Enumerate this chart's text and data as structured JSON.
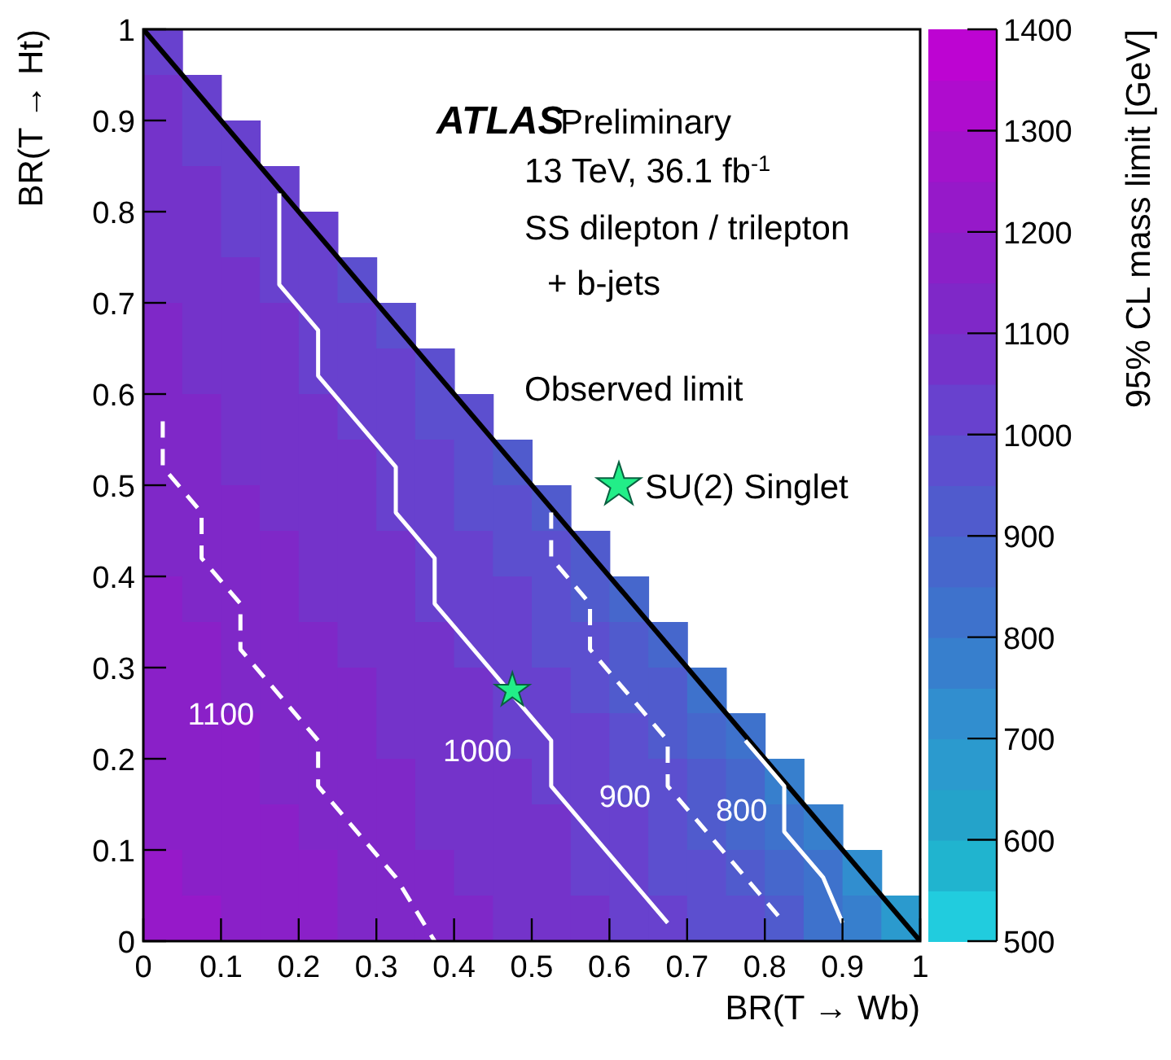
{
  "chart_data": {
    "type": "heatmap",
    "title": "ATLAS",
    "subtitle": "Preliminary",
    "xlabel": "BR(T → Wb)",
    "ylabel": "BR(T → Ht)",
    "clabel": "95% CL mass limit [GeV]",
    "annotations": [
      "13 TeV, 36.1 fb$^{-1}$",
      "SS dilepton / trilepton",
      "+ b-jets",
      "Observed limit"
    ],
    "xlim": [
      0,
      1
    ],
    "ylim": [
      0,
      1
    ],
    "xticks": [
      0,
      0.1,
      0.2,
      0.3,
      0.4,
      0.5,
      0.6,
      0.7,
      0.8,
      0.9,
      1
    ],
    "yticks": [
      0,
      0.1,
      0.2,
      0.3,
      0.4,
      0.5,
      0.6,
      0.7,
      0.8,
      0.9,
      1
    ],
    "clim": [
      500,
      1400
    ],
    "cticks": [
      500,
      600,
      700,
      800,
      900,
      1000,
      1100,
      1200,
      1300,
      1400
    ],
    "cells": [
      [
        1000,
        null,
        null,
        null,
        null,
        null,
        null,
        null,
        null,
        null,
        null,
        null,
        null,
        null,
        null,
        null,
        null,
        null,
        null,
        null
      ],
      [
        1050,
        1000,
        null,
        null,
        null,
        null,
        null,
        null,
        null,
        null,
        null,
        null,
        null,
        null,
        null,
        null,
        null,
        null,
        null,
        null
      ],
      [
        1050,
        1000,
        1000,
        null,
        null,
        null,
        null,
        null,
        null,
        null,
        null,
        null,
        null,
        null,
        null,
        null,
        null,
        null,
        null,
        null
      ],
      [
        1050,
        1050,
        1000,
        1000,
        null,
        null,
        null,
        null,
        null,
        null,
        null,
        null,
        null,
        null,
        null,
        null,
        null,
        null,
        null,
        null
      ],
      [
        1050,
        1050,
        1000,
        1000,
        1000,
        null,
        null,
        null,
        null,
        null,
        null,
        null,
        null,
        null,
        null,
        null,
        null,
        null,
        null,
        null
      ],
      [
        1050,
        1050,
        1050,
        1000,
        1000,
        950,
        null,
        null,
        null,
        null,
        null,
        null,
        null,
        null,
        null,
        null,
        null,
        null,
        null,
        null
      ],
      [
        1100,
        1050,
        1050,
        1050,
        1000,
        1000,
        950,
        null,
        null,
        null,
        null,
        null,
        null,
        null,
        null,
        null,
        null,
        null,
        null,
        null
      ],
      [
        1100,
        1050,
        1050,
        1050,
        1000,
        1000,
        1000,
        950,
        null,
        null,
        null,
        null,
        null,
        null,
        null,
        null,
        null,
        null,
        null,
        null
      ],
      [
        1100,
        1100,
        1050,
        1050,
        1050,
        1000,
        1000,
        950,
        950,
        null,
        null,
        null,
        null,
        null,
        null,
        null,
        null,
        null,
        null,
        null
      ],
      [
        1100,
        1100,
        1050,
        1050,
        1050,
        1050,
        1000,
        1000,
        950,
        900,
        null,
        null,
        null,
        null,
        null,
        null,
        null,
        null,
        null,
        null
      ],
      [
        1100,
        1100,
        1100,
        1050,
        1050,
        1050,
        1000,
        1000,
        950,
        950,
        900,
        null,
        null,
        null,
        null,
        null,
        null,
        null,
        null,
        null
      ],
      [
        1100,
        1100,
        1100,
        1100,
        1050,
        1050,
        1050,
        1000,
        1000,
        950,
        950,
        900,
        null,
        null,
        null,
        null,
        null,
        null,
        null,
        null
      ],
      [
        1150,
        1100,
        1100,
        1100,
        1050,
        1050,
        1050,
        1000,
        1000,
        1000,
        950,
        900,
        850,
        null,
        null,
        null,
        null,
        null,
        null,
        null
      ],
      [
        1150,
        1150,
        1100,
        1100,
        1100,
        1050,
        1050,
        1050,
        1000,
        1000,
        950,
        950,
        900,
        850,
        null,
        null,
        null,
        null,
        null,
        null
      ],
      [
        1150,
        1150,
        1100,
        1100,
        1100,
        1100,
        1050,
        1050,
        1050,
        1000,
        1000,
        950,
        900,
        900,
        800,
        null,
        null,
        null,
        null,
        null
      ],
      [
        1150,
        1150,
        1150,
        1100,
        1100,
        1100,
        1050,
        1050,
        1050,
        1000,
        1000,
        1000,
        950,
        900,
        850,
        800,
        null,
        null,
        null,
        null
      ],
      [
        1150,
        1150,
        1150,
        1100,
        1100,
        1100,
        1100,
        1050,
        1050,
        1050,
        1000,
        1000,
        950,
        950,
        900,
        850,
        750,
        null,
        null,
        null
      ],
      [
        1150,
        1150,
        1150,
        1150,
        1100,
        1100,
        1100,
        1050,
        1050,
        1050,
        1050,
        1000,
        1000,
        950,
        900,
        850,
        800,
        750,
        null,
        null
      ],
      [
        1200,
        1150,
        1150,
        1150,
        1150,
        1100,
        1100,
        1100,
        1050,
        1050,
        1050,
        1000,
        1000,
        950,
        950,
        900,
        850,
        800,
        700,
        null
      ],
      [
        1200,
        1200,
        1150,
        1150,
        1150,
        1100,
        1100,
        1100,
        1100,
        1050,
        1050,
        1050,
        1000,
        1000,
        950,
        950,
        900,
        800,
        750,
        650
      ]
    ],
    "series": [
      {
        "type": "line",
        "color": "#000000",
        "line_style": "solid",
        "x": [
          0,
          1
        ],
        "values": [
          1,
          0
        ]
      },
      {
        "type": "line",
        "name": "1100",
        "color": "#ffffff",
        "line_style": "dashed",
        "x": [
          0.025,
          0.025,
          0.075,
          0.075,
          0.125,
          0.125,
          0.175,
          0.225,
          0.225,
          0.275,
          0.325,
          0.375
        ],
        "values": [
          0.57,
          0.52,
          0.47,
          0.42,
          0.37,
          0.32,
          0.27,
          0.22,
          0.17,
          0.12,
          0.07,
          0
        ]
      },
      {
        "type": "line",
        "name": "1000",
        "color": "#ffffff",
        "line_style": "solid",
        "x": [
          0.175,
          0.175,
          0.225,
          0.225,
          0.275,
          0.325,
          0.325,
          0.375,
          0.375,
          0.425,
          0.525,
          0.525,
          0.575,
          0.625,
          0.675
        ],
        "values": [
          0.82,
          0.72,
          0.67,
          0.62,
          0.57,
          0.52,
          0.47,
          0.42,
          0.37,
          0.32,
          0.22,
          0.17,
          0.12,
          0.07,
          0.02
        ]
      },
      {
        "type": "line",
        "name": "900",
        "color": "#ffffff",
        "line_style": "dashed",
        "x": [
          0.525,
          0.525,
          0.575,
          0.575,
          0.625,
          0.675,
          0.675,
          0.725,
          0.775,
          0.825
        ],
        "values": [
          0.47,
          0.42,
          0.37,
          0.32,
          0.27,
          0.22,
          0.17,
          0.12,
          0.07,
          0.02
        ]
      },
      {
        "type": "line",
        "name": "800",
        "color": "#ffffff",
        "line_style": "solid",
        "x": [
          0.775,
          0.825,
          0.825,
          0.875,
          0.9
        ],
        "values": [
          0.22,
          0.17,
          0.12,
          0.07,
          0.02
        ]
      },
      {
        "type": "scatter",
        "name": "SU(2) Singlet",
        "color": "#22ee88",
        "marker": "star",
        "x": [
          0.475
        ],
        "values": [
          0.275
        ]
      }
    ],
    "legend": "top right"
  }
}
